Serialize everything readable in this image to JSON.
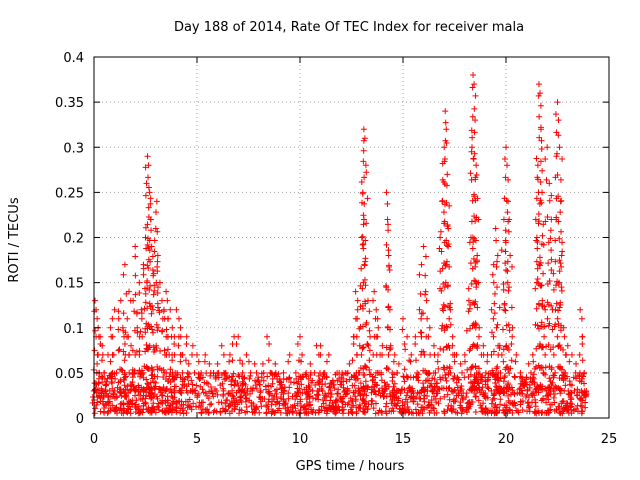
{
  "chart_data": {
    "type": "scatter",
    "title": "Day 188 of 2014, Rate Of TEC Index for receiver mala",
    "xlabel": "GPS time / hours",
    "ylabel": "ROTI / TECUs",
    "xlim": [
      0,
      25
    ],
    "ylim": [
      0,
      0.4
    ],
    "xticks": [
      0,
      5,
      10,
      15,
      20,
      25
    ],
    "xtick_labels": [
      "0",
      "5",
      "10",
      "15",
      "20",
      "25"
    ],
    "yticks": [
      0,
      0.05,
      0.1,
      0.15,
      0.2,
      0.25,
      0.3,
      0.35,
      0.4
    ],
    "ytick_labels": [
      "0",
      "0.05",
      "0.1",
      "0.15",
      "0.2",
      "0.25",
      "0.3",
      "0.35",
      "0.4"
    ],
    "grid": true,
    "marker": "+",
    "color": "#ff0000",
    "series": [
      {
        "name": "ROTI",
        "points": [
          [
            0.0,
            0.02
          ],
          [
            0.05,
            0.13
          ],
          [
            0.1,
            0.12
          ],
          [
            0.15,
            0.06
          ],
          [
            0.2,
            0.1
          ],
          [
            0.3,
            0.09
          ],
          [
            0.4,
            0.08
          ],
          [
            0.5,
            0.05
          ],
          [
            0.6,
            0.04
          ],
          [
            0.8,
            0.1
          ],
          [
            0.9,
            0.07
          ],
          [
            1.0,
            0.12
          ],
          [
            1.2,
            0.11
          ],
          [
            1.3,
            0.13
          ],
          [
            1.4,
            0.1
          ],
          [
            1.5,
            0.17
          ],
          [
            1.6,
            0.09
          ],
          [
            1.7,
            0.14
          ],
          [
            1.8,
            0.08
          ],
          [
            1.9,
            0.13
          ],
          [
            2.0,
            0.19
          ],
          [
            2.1,
            0.1
          ],
          [
            2.2,
            0.15
          ],
          [
            2.3,
            0.12
          ],
          [
            2.4,
            0.17
          ],
          [
            2.5,
            0.2
          ],
          [
            2.55,
            0.26
          ],
          [
            2.6,
            0.29
          ],
          [
            2.65,
            0.28
          ],
          [
            2.7,
            0.25
          ],
          [
            2.75,
            0.22
          ],
          [
            2.8,
            0.19
          ],
          [
            2.9,
            0.16
          ],
          [
            3.0,
            0.21
          ],
          [
            3.05,
            0.24
          ],
          [
            3.1,
            0.18
          ],
          [
            3.2,
            0.15
          ],
          [
            3.3,
            0.13
          ],
          [
            3.4,
            0.12
          ],
          [
            3.5,
            0.14
          ],
          [
            3.6,
            0.11
          ],
          [
            3.7,
            0.12
          ],
          [
            3.8,
            0.1
          ],
          [
            3.9,
            0.09
          ],
          [
            4.0,
            0.12
          ],
          [
            4.1,
            0.08
          ],
          [
            4.2,
            0.1
          ],
          [
            4.3,
            0.07
          ],
          [
            4.5,
            0.09
          ],
          [
            4.6,
            0.06
          ],
          [
            4.8,
            0.08
          ],
          [
            5.0,
            0.07
          ],
          [
            5.2,
            0.05
          ],
          [
            5.4,
            0.07
          ],
          [
            5.6,
            0.06
          ],
          [
            5.8,
            0.05
          ],
          [
            6.0,
            0.06
          ],
          [
            6.2,
            0.08
          ],
          [
            6.4,
            0.05
          ],
          [
            6.6,
            0.07
          ],
          [
            6.8,
            0.09
          ],
          [
            7.0,
            0.09
          ],
          [
            7.2,
            0.06
          ],
          [
            7.4,
            0.07
          ],
          [
            7.6,
            0.05
          ],
          [
            7.8,
            0.06
          ],
          [
            8.0,
            0.04
          ],
          [
            8.2,
            0.06
          ],
          [
            8.4,
            0.09
          ],
          [
            8.6,
            0.05
          ],
          [
            8.8,
            0.06
          ],
          [
            9.0,
            0.04
          ],
          [
            9.2,
            0.05
          ],
          [
            9.5,
            0.07
          ],
          [
            9.8,
            0.05
          ],
          [
            10.0,
            0.09
          ],
          [
            10.1,
            0.07
          ],
          [
            10.3,
            0.05
          ],
          [
            10.5,
            0.06
          ],
          [
            10.8,
            0.08
          ],
          [
            11.0,
            0.08
          ],
          [
            11.2,
            0.05
          ],
          [
            11.4,
            0.07
          ],
          [
            11.6,
            0.04
          ],
          [
            11.8,
            0.05
          ],
          [
            12.0,
            0.04
          ],
          [
            12.2,
            0.05
          ],
          [
            12.4,
            0.06
          ],
          [
            12.6,
            0.09
          ],
          [
            12.7,
            0.14
          ],
          [
            12.8,
            0.12
          ],
          [
            12.9,
            0.08
          ],
          [
            13.0,
            0.2
          ],
          [
            13.05,
            0.25
          ],
          [
            13.1,
            0.32
          ],
          [
            13.15,
            0.31
          ],
          [
            13.2,
            0.28
          ],
          [
            13.3,
            0.13
          ],
          [
            13.4,
            0.09
          ],
          [
            13.6,
            0.14
          ],
          [
            13.7,
            0.12
          ],
          [
            13.8,
            0.1
          ],
          [
            14.0,
            0.08
          ],
          [
            14.2,
            0.25
          ],
          [
            14.25,
            0.22
          ],
          [
            14.3,
            0.18
          ],
          [
            14.4,
            0.08
          ],
          [
            14.6,
            0.07
          ],
          [
            14.8,
            0.06
          ],
          [
            15.0,
            0.11
          ],
          [
            15.2,
            0.09
          ],
          [
            15.4,
            0.07
          ],
          [
            15.6,
            0.09
          ],
          [
            15.8,
            0.12
          ],
          [
            15.9,
            0.17
          ],
          [
            16.0,
            0.19
          ],
          [
            16.1,
            0.14
          ],
          [
            16.3,
            0.1
          ],
          [
            16.5,
            0.08
          ],
          [
            16.7,
            0.07
          ],
          [
            16.8,
            0.2
          ],
          [
            16.9,
            0.24
          ],
          [
            17.0,
            0.3
          ],
          [
            17.05,
            0.34
          ],
          [
            17.1,
            0.32
          ],
          [
            17.15,
            0.27
          ],
          [
            17.2,
            0.21
          ],
          [
            17.3,
            0.12
          ],
          [
            17.4,
            0.08
          ],
          [
            17.6,
            0.07
          ],
          [
            17.8,
            0.06
          ],
          [
            18.0,
            0.07
          ],
          [
            18.2,
            0.13
          ],
          [
            18.3,
            0.2
          ],
          [
            18.35,
            0.3
          ],
          [
            18.4,
            0.38
          ],
          [
            18.45,
            0.37
          ],
          [
            18.5,
            0.33
          ],
          [
            18.55,
            0.28
          ],
          [
            18.6,
            0.18
          ],
          [
            18.7,
            0.1
          ],
          [
            18.9,
            0.08
          ],
          [
            19.1,
            0.07
          ],
          [
            19.3,
            0.12
          ],
          [
            19.4,
            0.17
          ],
          [
            19.5,
            0.21
          ],
          [
            19.6,
            0.18
          ],
          [
            19.7,
            0.08
          ],
          [
            19.8,
            0.07
          ],
          [
            19.9,
            0.22
          ],
          [
            20.0,
            0.3
          ],
          [
            20.05,
            0.28
          ],
          [
            20.1,
            0.24
          ],
          [
            20.2,
            0.18
          ],
          [
            20.3,
            0.09
          ],
          [
            20.5,
            0.07
          ],
          [
            20.7,
            0.05
          ],
          [
            20.9,
            0.04
          ],
          [
            21.1,
            0.06
          ],
          [
            21.3,
            0.07
          ],
          [
            21.5,
            0.2
          ],
          [
            21.55,
            0.28
          ],
          [
            21.6,
            0.37
          ],
          [
            21.65,
            0.36
          ],
          [
            21.7,
            0.32
          ],
          [
            21.75,
            0.25
          ],
          [
            21.8,
            0.16
          ],
          [
            21.9,
            0.12
          ],
          [
            22.0,
            0.3
          ],
          [
            22.1,
            0.26
          ],
          [
            22.2,
            0.22
          ],
          [
            22.3,
            0.16
          ],
          [
            22.4,
            0.12
          ],
          [
            22.5,
            0.35
          ],
          [
            22.55,
            0.33
          ],
          [
            22.6,
            0.3
          ],
          [
            22.65,
            0.24
          ],
          [
            22.7,
            0.18
          ],
          [
            22.8,
            0.1
          ],
          [
            23.0,
            0.08
          ],
          [
            23.2,
            0.07
          ],
          [
            23.4,
            0.06
          ],
          [
            23.6,
            0.12
          ],
          [
            23.7,
            0.09
          ],
          [
            23.8,
            0.05
          ]
        ]
      }
    ],
    "dense_band": {
      "x_range": [
        0,
        23.9
      ],
      "y_range": [
        0.005,
        0.05
      ],
      "count": 1400
    }
  }
}
